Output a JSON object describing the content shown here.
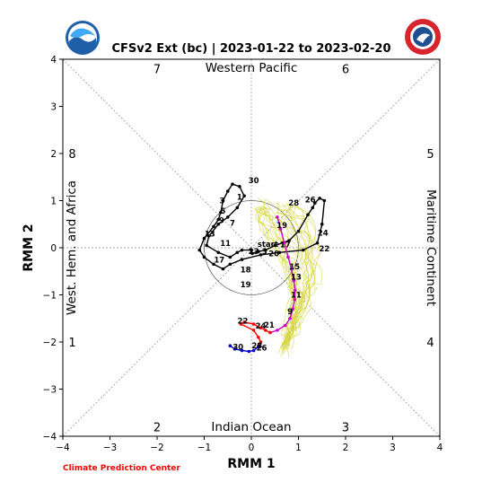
{
  "chart_data": {
    "type": "line",
    "title": "CFSv2 Ext (bc) | 2023-01-22 to 2023-02-20",
    "xlabel": "RMM 1",
    "ylabel": "RMM 2",
    "xlim": [
      -4,
      4
    ],
    "ylim": [
      -4,
      4
    ],
    "xticks": [
      -4,
      -3,
      -2,
      -1,
      0,
      1,
      2,
      3,
      4
    ],
    "yticks": [
      -4,
      -3,
      -2,
      -1,
      0,
      1,
      2,
      3,
      4
    ],
    "unit_circle_radius": 1,
    "phase_numbers": [
      {
        "phase": "1",
        "x": -3.8,
        "y": -2.0
      },
      {
        "phase": "2",
        "x": -2.0,
        "y": -3.8
      },
      {
        "phase": "3",
        "x": 2.0,
        "y": -3.8
      },
      {
        "phase": "4",
        "x": 3.8,
        "y": -2.0
      },
      {
        "phase": "5",
        "x": 3.8,
        "y": 2.0
      },
      {
        "phase": "6",
        "x": 2.0,
        "y": 3.8
      },
      {
        "phase": "7",
        "x": -2.0,
        "y": 3.8
      },
      {
        "phase": "8",
        "x": -3.8,
        "y": 2.0
      }
    ],
    "regions": {
      "top": "Western Pacific",
      "bottom": "Indian Ocean",
      "left": "West. Hem. and Africa",
      "right": "Maritime Continent"
    },
    "start_label": "start",
    "colors": {
      "observed": "#000000",
      "forecast_week1": "#cc00cc",
      "forecast_week2": "#ff0000",
      "forecast_week3": "#0000cc",
      "ensemble": "#d4d43a"
    },
    "observed": {
      "x": [
        0.02,
        0.15,
        0.3,
        0.5,
        0.8,
        1.0,
        1.2,
        1.3,
        1.35,
        1.45,
        1.55,
        1.5,
        1.4,
        1.1,
        0.6,
        0.2,
        -0.2,
        -0.45,
        -0.6,
        -0.8,
        -1.0,
        -1.1,
        -1.0,
        -0.8,
        -0.7,
        -0.65,
        -0.6,
        -0.5,
        -0.4,
        -0.25,
        -0.15,
        -0.3,
        -0.5,
        -0.7,
        -0.9,
        -0.95,
        -0.7,
        -0.45,
        -0.3,
        -0.2,
        0.0
      ],
      "y": [
        -0.12,
        -0.08,
        -0.05,
        0.05,
        0.15,
        0.35,
        0.7,
        0.85,
        0.95,
        1.05,
        1.0,
        0.5,
        0.1,
        -0.05,
        -0.1,
        -0.15,
        -0.25,
        -0.35,
        -0.45,
        -0.35,
        -0.2,
        -0.05,
        0.2,
        0.45,
        0.6,
        0.75,
        1.0,
        1.2,
        1.35,
        1.3,
        1.1,
        0.85,
        0.65,
        0.5,
        0.25,
        0.05,
        -0.1,
        -0.2,
        -0.1,
        -0.05,
        -0.05
      ],
      "labels": [
        {
          "text": "30",
          "x": 0.05,
          "y": 1.43
        },
        {
          "text": "28",
          "x": 0.9,
          "y": 0.95
        },
        {
          "text": "26",
          "x": 1.25,
          "y": 1.02
        },
        {
          "text": "24",
          "x": 1.52,
          "y": 0.31
        },
        {
          "text": "22",
          "x": 1.55,
          "y": -0.02
        },
        {
          "text": "20",
          "x": 0.48,
          "y": -0.12
        },
        {
          "text": "19",
          "x": -0.12,
          "y": -0.78
        },
        {
          "text": "17",
          "x": -0.68,
          "y": -0.26
        },
        {
          "text": "18",
          "x": -0.12,
          "y": -0.47
        },
        {
          "text": "13",
          "x": -0.88,
          "y": 0.3
        },
        {
          "text": "11",
          "x": -0.55,
          "y": 0.1
        },
        {
          "text": "9",
          "x": -0.63,
          "y": 0.58
        },
        {
          "text": "7",
          "x": -0.4,
          "y": 0.52
        },
        {
          "text": "5",
          "x": -0.6,
          "y": 0.78
        },
        {
          "text": "3",
          "x": -0.62,
          "y": 1.0
        },
        {
          "text": "1",
          "x": -0.25,
          "y": 1.08
        },
        {
          "text": "23",
          "x": 0.05,
          "y": -0.08
        },
        {
          "text": "3",
          "x": 0.28,
          "y": -0.08
        }
      ]
    },
    "forecast_week1": {
      "x": [
        0.55,
        0.62,
        0.7,
        0.78,
        0.85,
        0.9,
        0.93,
        0.92,
        0.88,
        0.82,
        0.72,
        0.55,
        0.4
      ],
      "y": [
        0.65,
        0.4,
        0.1,
        -0.2,
        -0.45,
        -0.7,
        -0.9,
        -1.1,
        -1.3,
        -1.5,
        -1.65,
        -1.75,
        -1.8
      ],
      "labels": [
        {
          "text": "19",
          "x": 0.65,
          "y": 0.48
        },
        {
          "text": "17",
          "x": 0.72,
          "y": 0.07
        },
        {
          "text": "15",
          "x": 0.92,
          "y": -0.4
        },
        {
          "text": "13",
          "x": 0.95,
          "y": -0.62
        },
        {
          "text": "11",
          "x": 0.95,
          "y": -1.0
        },
        {
          "text": "9",
          "x": 0.82,
          "y": -1.35
        },
        {
          "text": "21",
          "x": 0.38,
          "y": -1.64
        }
      ]
    },
    "forecast_week2": {
      "x": [
        0.4,
        0.3,
        0.2,
        0.05,
        -0.15,
        -0.22,
        0.05,
        0.15,
        0.2,
        0.15
      ],
      "y": [
        -1.8,
        -1.75,
        -1.7,
        -1.62,
        -1.58,
        -1.62,
        -1.75,
        -1.9,
        -2.0,
        -2.1
      ],
      "labels": [
        {
          "text": "22",
          "x": -0.18,
          "y": -1.55
        },
        {
          "text": "24",
          "x": 0.2,
          "y": -1.66
        }
      ]
    },
    "forecast_week3": {
      "x": [
        0.15,
        0.05,
        -0.05,
        -0.2,
        -0.35,
        -0.45
      ],
      "y": [
        -2.1,
        -2.18,
        -2.2,
        -2.18,
        -2.15,
        -2.08
      ],
      "labels": [
        {
          "text": "30",
          "x": -0.28,
          "y": -2.1
        },
        {
          "text": "28",
          "x": 0.12,
          "y": -2.08
        },
        {
          "text": "26",
          "x": 0.22,
          "y": -2.12
        }
      ]
    }
  }
}
